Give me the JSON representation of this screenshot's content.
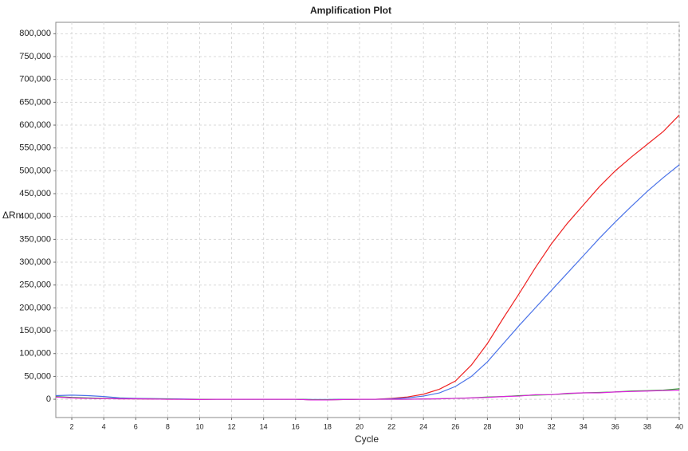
{
  "chart_data": {
    "type": "line",
    "title": "Amplification Plot",
    "x_label": "Cycle",
    "y_label": "ΔRn",
    "x": [
      1,
      2,
      3,
      4,
      5,
      6,
      7,
      8,
      9,
      10,
      11,
      12,
      13,
      14,
      15,
      16,
      17,
      18,
      19,
      20,
      21,
      22,
      23,
      24,
      25,
      26,
      27,
      28,
      29,
      30,
      31,
      32,
      33,
      34,
      35,
      36,
      37,
      38,
      39,
      40
    ],
    "series": [
      {
        "name": "red",
        "color": "#ee2222",
        "values": [
          5000,
          3000,
          2000,
          1500,
          1000,
          1000,
          500,
          0,
          0,
          -500,
          0,
          0,
          0,
          0,
          0,
          0,
          -1000,
          -1000,
          -500,
          0,
          0,
          2000,
          5000,
          11000,
          22000,
          40000,
          75000,
          122000,
          178000,
          232000,
          288000,
          340000,
          385000,
          425000,
          465000,
          500000,
          530000,
          558000,
          586000,
          622000
        ]
      },
      {
        "name": "blue",
        "color": "#4a72e8",
        "values": [
          8000,
          9000,
          8000,
          6000,
          3000,
          2000,
          1500,
          1000,
          500,
          0,
          0,
          0,
          0,
          0,
          0,
          0,
          -500,
          -500,
          0,
          0,
          0,
          1000,
          3000,
          7000,
          14000,
          28000,
          50000,
          82000,
          122000,
          162000,
          200000,
          238000,
          276000,
          314000,
          352000,
          388000,
          422000,
          455000,
          485000,
          513000
        ]
      },
      {
        "name": "green",
        "color": "#33aa33",
        "values": [
          6000,
          4000,
          3000,
          2000,
          1500,
          1000,
          1000,
          500,
          0,
          0,
          0,
          0,
          0,
          0,
          0,
          0,
          -1000,
          -1000,
          -500,
          0,
          0,
          0,
          0,
          500,
          1000,
          2000,
          3000,
          5000,
          6000,
          8000,
          9000,
          10000,
          12000,
          14000,
          15000,
          16000,
          18000,
          19000,
          20000,
          23000
        ]
      },
      {
        "name": "magenta",
        "color": "#dd22dd",
        "values": [
          5000,
          3000,
          2000,
          1500,
          1000,
          1000,
          500,
          0,
          0,
          -500,
          0,
          0,
          0,
          0,
          0,
          0,
          -1500,
          -1500,
          -500,
          0,
          0,
          0,
          0,
          500,
          1000,
          2000,
          3000,
          4000,
          6000,
          7000,
          10000,
          10000,
          13000,
          14000,
          14000,
          16000,
          17000,
          18000,
          19000,
          20000
        ]
      }
    ],
    "xlim": [
      1,
      40
    ],
    "xticks": [
      2,
      4,
      6,
      8,
      10,
      12,
      14,
      16,
      18,
      20,
      22,
      24,
      26,
      28,
      30,
      32,
      34,
      36,
      38,
      40
    ],
    "ylim": [
      -40000,
      825000
    ],
    "yticks": [
      0,
      {
        "value": 50000,
        "label": "50,000"
      },
      {
        "value": 100000,
        "label": "100,000"
      },
      {
        "value": 150000,
        "label": "150,000"
      },
      {
        "value": 200000,
        "label": "200,000"
      },
      {
        "value": 250000,
        "label": "250,000"
      },
      {
        "value": 300000,
        "label": "300,000"
      },
      {
        "value": 350000,
        "label": "350,000"
      },
      {
        "value": 400000,
        "label": "400,000"
      },
      {
        "value": 450000,
        "label": "450,000"
      },
      {
        "value": 500000,
        "label": "500,000"
      },
      {
        "value": 550000,
        "label": "550,000"
      },
      {
        "value": 600000,
        "label": "600,000"
      },
      {
        "value": 650000,
        "label": "650,000"
      },
      {
        "value": 700000,
        "label": "700,000"
      },
      {
        "value": 750000,
        "label": "750,000"
      },
      {
        "value": 800000,
        "label": "800,000"
      }
    ],
    "grid": true
  }
}
